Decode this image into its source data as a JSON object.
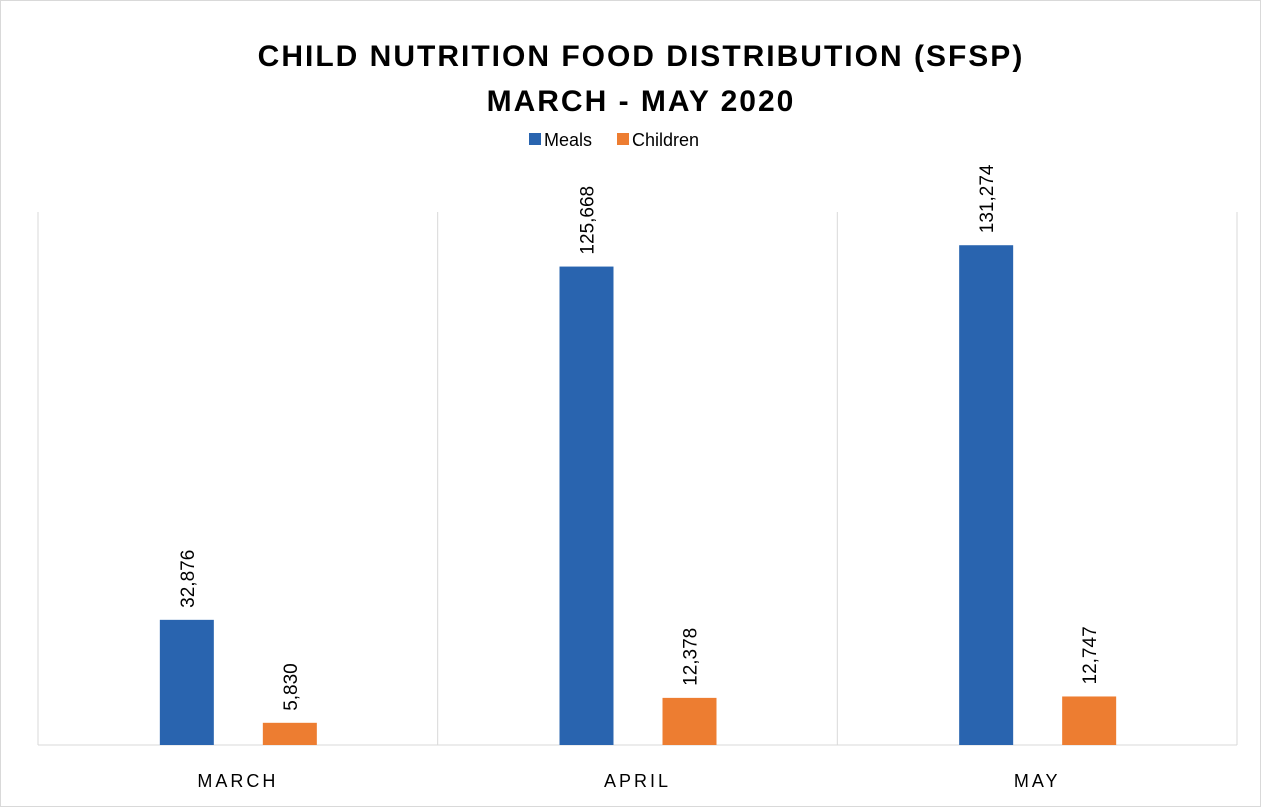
{
  "chart_data": {
    "type": "bar",
    "title": "CHILD NUTRITION FOOD DISTRIBUTION (SFSP)",
    "subtitle": "MARCH - MAY 2020",
    "categories": [
      "MARCH",
      "APRIL",
      "MAY"
    ],
    "series": [
      {
        "name": "Meals",
        "color": "#2964AF",
        "values": [
          32876,
          125668,
          131274
        ],
        "value_labels": [
          "32,876",
          "125,668",
          "131,274"
        ]
      },
      {
        "name": "Children",
        "color": "#ED7D31",
        "values": [
          5830,
          12378,
          12747
        ],
        "value_labels": [
          "5,830",
          "12,378",
          "12,747"
        ]
      }
    ],
    "ylim": [
      0,
      140000
    ],
    "legend": "top"
  }
}
